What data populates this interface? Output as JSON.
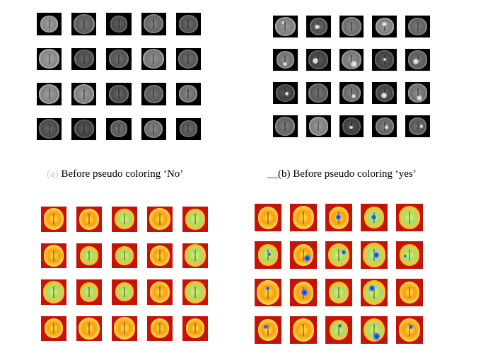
{
  "captions": {
    "a_label": "(a)",
    "a_text": "Before pseudo coloring ‘No’",
    "b_link": "__",
    "b_text": "(b) Before pseudo coloring ‘yes’"
  },
  "panels": [
    {
      "id": "no-gray",
      "style": "gray",
      "tumor": false,
      "rows": 4,
      "cols": 5
    },
    {
      "id": "yes-gray",
      "style": "gray",
      "tumor": true,
      "rows": 4,
      "cols": 5
    },
    {
      "id": "no-color",
      "style": "color",
      "tumor": false,
      "rows": 4,
      "cols": 5
    },
    {
      "id": "yes-color",
      "style": "color",
      "tumor": true,
      "rows": 4,
      "cols": 5
    }
  ]
}
